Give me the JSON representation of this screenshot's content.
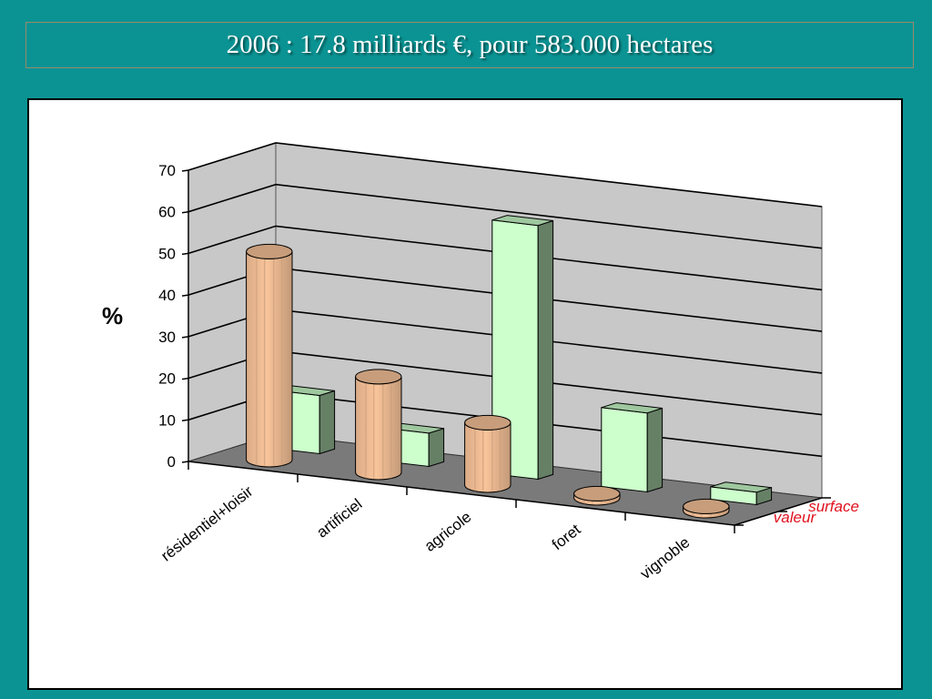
{
  "slide_title": "2006 : 17.8 milliards €, pour 583.000 hectares",
  "colors": {
    "background": "#0b9393",
    "valeur_fill": "#f9c49a",
    "surface_fill": "#ccffcc",
    "floor": "#7a7a7a",
    "walls": "#c8c8c8",
    "series_label_color": "#e0101e"
  },
  "chart_data": {
    "type": "bar",
    "style": "3d-clustered-depth",
    "categories": [
      "résidentiel+loisir",
      "artificiel",
      "agricole",
      "foret",
      "vignoble"
    ],
    "series": [
      {
        "name": "surface",
        "shape": "box",
        "color": "#ccffcc",
        "values": [
          14,
          8,
          61,
          19,
          3
        ]
      },
      {
        "name": "valeur",
        "shape": "cylinder",
        "color": "#f9c49a",
        "values": [
          50,
          23,
          15,
          1,
          1
        ]
      }
    ],
    "ylabel": "%",
    "ylim": [
      0,
      70
    ],
    "yticks": [
      0,
      10,
      20,
      30,
      40,
      50,
      60,
      70
    ],
    "grid": true,
    "legend": "none"
  }
}
